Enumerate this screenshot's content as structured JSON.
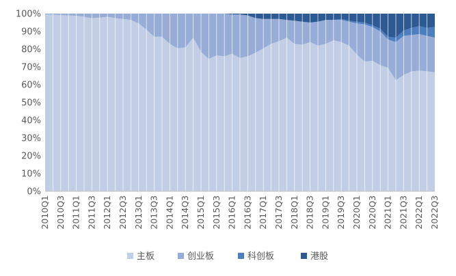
{
  "chart_data": {
    "type": "area",
    "stacked": true,
    "percent": true,
    "x": [
      "2010Q1",
      "2010Q2",
      "2010Q3",
      "2010Q4",
      "2011Q1",
      "2011Q2",
      "2011Q3",
      "2011Q4",
      "2012Q1",
      "2012Q2",
      "2012Q3",
      "2012Q4",
      "2013Q1",
      "2013Q2",
      "2013Q3",
      "2013Q4",
      "2014Q1",
      "2014Q2",
      "2014Q3",
      "2014Q4",
      "2015Q1",
      "2015Q2",
      "2015Q3",
      "2015Q4",
      "2016Q1",
      "2016Q2",
      "2016Q3",
      "2016Q4",
      "2017Q1",
      "2017Q2",
      "2017Q3",
      "2017Q4",
      "2018Q1",
      "2018Q2",
      "2018Q3",
      "2018Q4",
      "2019Q1",
      "2019Q2",
      "2019Q3",
      "2019Q4",
      "2020Q1",
      "2020Q2",
      "2020Q3",
      "2020Q4",
      "2021Q1",
      "2021Q2",
      "2021Q3",
      "2021Q4",
      "2022Q1",
      "2022Q2",
      "2022Q3"
    ],
    "tick_labels": [
      "2010Q1",
      "2010Q3",
      "2011Q1",
      "2011Q3",
      "2012Q1",
      "2012Q3",
      "2013Q1",
      "2013Q3",
      "2014Q1",
      "2014Q3",
      "2015Q1",
      "2015Q3",
      "2016Q1",
      "2016Q3",
      "2017Q1",
      "2017Q3",
      "2018Q1",
      "2018Q3",
      "2019Q1",
      "2019Q3",
      "2020Q1",
      "2020Q3",
      "2021Q1",
      "2021Q3",
      "2022Q1",
      "2022Q3"
    ],
    "y_tick_labels": [
      "0%",
      "10%",
      "20%",
      "30%",
      "40%",
      "50%",
      "60%",
      "70%",
      "80%",
      "90%",
      "100%"
    ],
    "ylim": [
      0,
      100
    ],
    "legend_position": "bottom",
    "series": [
      {
        "name": "主板",
        "color": "#c2cde6",
        "values": [
          99.5,
          99.5,
          99.2,
          99,
          98.8,
          98.2,
          97.5,
          97.8,
          98.2,
          97.5,
          97,
          96.5,
          94.5,
          91,
          87,
          87,
          83,
          80.5,
          81,
          86.5,
          78.5,
          74.5,
          76.5,
          76,
          77.5,
          75,
          76,
          78,
          80.5,
          83,
          84.5,
          86.5,
          83,
          82.5,
          84,
          82,
          83,
          85,
          84,
          82,
          77,
          73,
          73.5,
          71,
          69.5,
          62.5,
          65.5,
          67.5,
          68,
          67.5,
          67
        ]
      },
      {
        "name": "创业板",
        "color": "#97acd6",
        "values": [
          0.5,
          0.5,
          0.8,
          1,
          1.2,
          1.8,
          2.5,
          2.2,
          1.8,
          2.5,
          3,
          3.5,
          5.5,
          9,
          13,
          13,
          17,
          19.5,
          19,
          13.5,
          21.5,
          25.5,
          23.5,
          24,
          22,
          24.5,
          23,
          19.5,
          16.5,
          14,
          12.5,
          10,
          13,
          13,
          11,
          13.5,
          13.5,
          11.5,
          12.5,
          13.5,
          17.5,
          21,
          19,
          19,
          16,
          21.5,
          22,
          20.5,
          20.5,
          20,
          19.5
        ]
      },
      {
        "name": "科创板",
        "color": "#4d7ec0",
        "values": [
          0,
          0,
          0,
          0,
          0,
          0,
          0,
          0,
          0,
          0,
          0,
          0,
          0,
          0,
          0,
          0,
          0,
          0,
          0,
          0,
          0,
          0,
          0,
          0,
          0,
          0,
          0,
          0,
          0,
          0,
          0,
          0,
          0,
          0,
          0,
          0,
          0,
          0,
          0.5,
          0.5,
          1,
          1,
          1,
          1.5,
          1.5,
          2.5,
          3,
          4,
          4.5,
          4.5,
          6
        ]
      },
      {
        "name": "港股",
        "color": "#2e5a94",
        "values": [
          0,
          0,
          0,
          0,
          0,
          0,
          0,
          0,
          0,
          0,
          0,
          0,
          0,
          0,
          0,
          0,
          0,
          0,
          0,
          0,
          0,
          0,
          0,
          0,
          0.5,
          0.5,
          1,
          2.5,
          3,
          3,
          3,
          3.5,
          4,
          4.5,
          5,
          4.5,
          3.5,
          3.5,
          3,
          4,
          4.5,
          5,
          6.5,
          8.5,
          13,
          13.5,
          9.5,
          8,
          7,
          8,
          7.5
        ]
      }
    ]
  }
}
